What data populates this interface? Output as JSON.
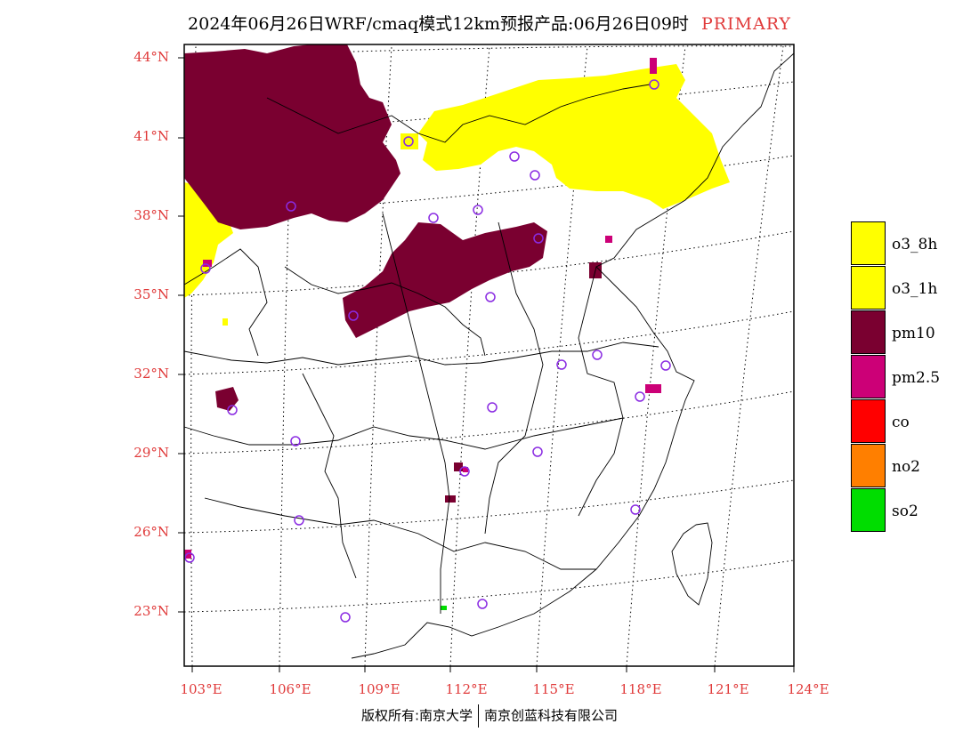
{
  "header": {
    "title": "2024年06月26日WRF/cmaq模式12km预报产品:06月26日09时",
    "pollutant_tag": "PRIMARY"
  },
  "axes": {
    "lat_labels": [
      "44°N",
      "41°N",
      "38°N",
      "35°N",
      "32°N",
      "29°N",
      "26°N",
      "23°N"
    ],
    "lon_labels": [
      "103°E",
      "106°E",
      "109°E",
      "112°E",
      "115°E",
      "118°E",
      "121°E",
      "124°E"
    ]
  },
  "legend": {
    "items": [
      {
        "label": "o3_8h",
        "color": "#ffff00"
      },
      {
        "label": "o3_1h",
        "color": "#ffff00"
      },
      {
        "label": "pm10",
        "color": "#7a0030"
      },
      {
        "label": "pm2.5",
        "color": "#cc0077"
      },
      {
        "label": "co",
        "color": "#ff0000"
      },
      {
        "label": "no2",
        "color": "#ff7f00"
      },
      {
        "label": "so2",
        "color": "#00dd00"
      }
    ]
  },
  "footer": {
    "left": "版权所有:南京大学",
    "right": "南京创蓝科技有限公司"
  },
  "colors": {
    "label_red": "#e03a3a",
    "station_circle": "#8a2be2",
    "o3": "#ffff00",
    "pm10": "#7a0030",
    "pm25": "#cc0077",
    "so2": "#00dd00"
  }
}
